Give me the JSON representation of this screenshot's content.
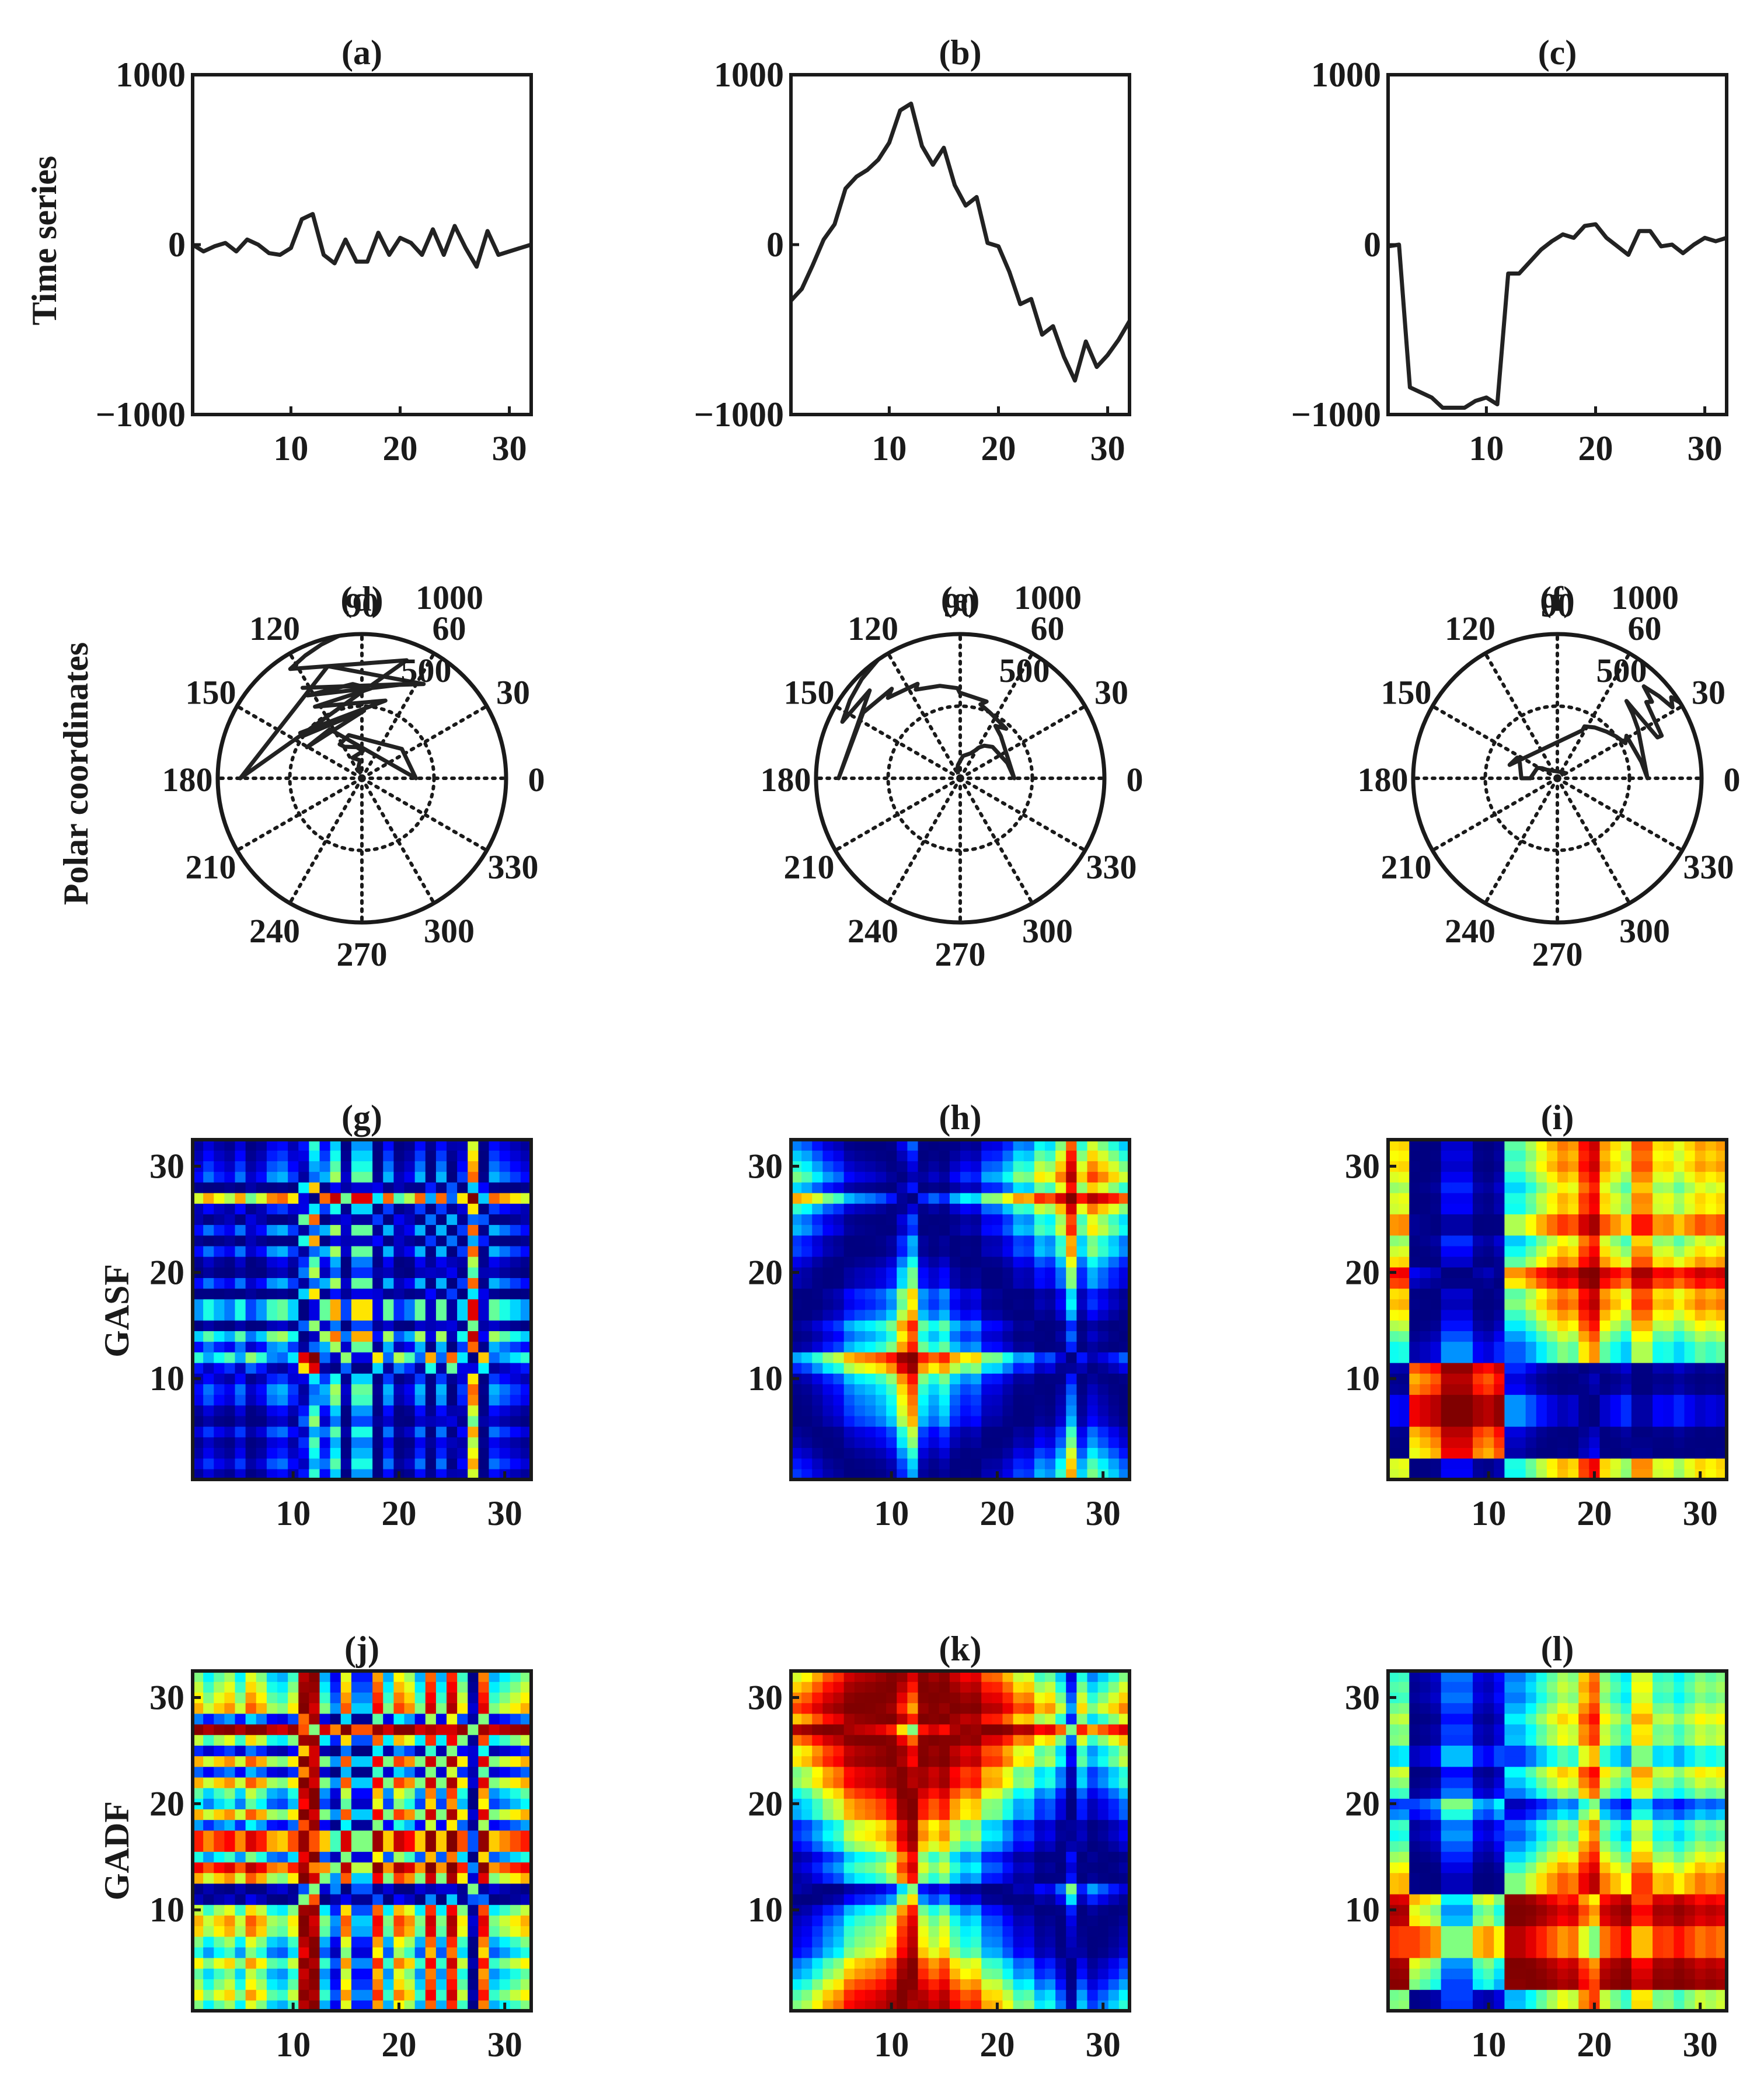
{
  "figure": {
    "row_labels": [
      "Time series",
      "Polar coordinates",
      "GASF",
      "GADF"
    ],
    "panel_titles": [
      "(a)",
      "(b)",
      "(c)",
      "(d)",
      "(e)",
      "(f)",
      "(g)",
      "(h)",
      "(i)",
      "(j)",
      "(k)",
      "(l)"
    ],
    "line_color": "#222222",
    "colormap": "jet"
  },
  "chart_data": [
    {
      "type": "line",
      "title": "(a)",
      "ylabel": "Time series",
      "xlabel": "",
      "xlim": [
        1,
        32
      ],
      "ylim": [
        -1000,
        1000
      ],
      "xticks": [
        10,
        20,
        30
      ],
      "yticks": [
        -1000,
        0,
        1000
      ],
      "ytick_labels": [
        "−1000",
        "0",
        "1000"
      ],
      "x": [
        1,
        2,
        3,
        4,
        5,
        6,
        7,
        8,
        9,
        10,
        11,
        12,
        13,
        14,
        15,
        16,
        17,
        18,
        19,
        20,
        21,
        22,
        23,
        24,
        25,
        26,
        27,
        28,
        29,
        30,
        31,
        32
      ],
      "values": [
        0,
        -40,
        -10,
        10,
        -40,
        30,
        0,
        -50,
        -60,
        -20,
        150,
        180,
        -60,
        -110,
        30,
        -100,
        -100,
        70,
        -60,
        40,
        10,
        -60,
        90,
        -60,
        110,
        -20,
        -130,
        80,
        -60,
        -40,
        -20,
        0
      ]
    },
    {
      "type": "line",
      "title": "(b)",
      "ylabel": "",
      "xlabel": "",
      "xlim": [
        1,
        32
      ],
      "ylim": [
        -1000,
        1000
      ],
      "xticks": [
        10,
        20,
        30
      ],
      "yticks": [
        -1000,
        0,
        1000
      ],
      "ytick_labels": [
        "−1000",
        "0",
        "1000"
      ],
      "x": [
        1,
        2,
        3,
        4,
        5,
        6,
        7,
        8,
        9,
        10,
        11,
        12,
        13,
        14,
        15,
        16,
        17,
        18,
        19,
        20,
        21,
        22,
        23,
        24,
        25,
        26,
        27,
        28,
        29,
        30,
        31,
        32
      ],
      "values": [
        -330,
        -260,
        -120,
        30,
        120,
        330,
        400,
        440,
        500,
        600,
        790,
        830,
        580,
        470,
        570,
        350,
        230,
        280,
        10,
        -10,
        -160,
        -350,
        -320,
        -530,
        -480,
        -660,
        -800,
        -570,
        -720,
        -650,
        -560,
        -450
      ]
    },
    {
      "type": "line",
      "title": "(c)",
      "ylabel": "",
      "xlabel": "",
      "xlim": [
        1,
        32
      ],
      "ylim": [
        -1000,
        1000
      ],
      "xticks": [
        10,
        20,
        30
      ],
      "yticks": [
        -1000,
        0,
        1000
      ],
      "ytick_labels": [
        "−1000",
        "0",
        "1000"
      ],
      "x": [
        1,
        2,
        3,
        4,
        5,
        6,
        7,
        8,
        9,
        10,
        11,
        12,
        13,
        14,
        15,
        16,
        17,
        18,
        19,
        20,
        21,
        22,
        23,
        24,
        25,
        26,
        27,
        28,
        29,
        30,
        31,
        32
      ],
      "values": [
        -10,
        0,
        -840,
        -870,
        -900,
        -960,
        -960,
        -960,
        -920,
        -900,
        -940,
        -170,
        -170,
        -100,
        -30,
        20,
        60,
        40,
        110,
        120,
        40,
        -10,
        -60,
        80,
        80,
        -10,
        0,
        -50,
        0,
        40,
        20,
        40
      ]
    },
    {
      "type": "polar",
      "title": "(d)",
      "ylabel": "Polar coordinates",
      "r_ticks": [
        500,
        1000
      ],
      "r_tick_labels": [
        "500",
        "1000"
      ],
      "theta_ticks": [
        0,
        30,
        60,
        90,
        120,
        150,
        180,
        210,
        240,
        270,
        300,
        330
      ],
      "source_series": 0
    },
    {
      "type": "polar",
      "title": "(e)",
      "ylabel": "",
      "r_ticks": [
        500,
        1000
      ],
      "r_tick_labels": [
        "500",
        "1000"
      ],
      "theta_ticks": [
        0,
        30,
        60,
        90,
        120,
        150,
        180,
        210,
        240,
        270,
        300,
        330
      ],
      "source_series": 1
    },
    {
      "type": "polar",
      "title": "(f)",
      "ylabel": "",
      "r_ticks": [
        500,
        1000
      ],
      "r_tick_labels": [
        "500",
        "1000"
      ],
      "theta_ticks": [
        0,
        30,
        60,
        90,
        120,
        150,
        180,
        210,
        240,
        270,
        300,
        330
      ],
      "source_series": 2
    },
    {
      "type": "heatmap",
      "title": "(g)",
      "ylabel": "GASF",
      "field": "GASF",
      "source_series": 0,
      "xticks": [
        10,
        20,
        30
      ],
      "yticks": [
        10,
        20,
        30
      ],
      "clim": [
        -1,
        1
      ]
    },
    {
      "type": "heatmap",
      "title": "(h)",
      "ylabel": "",
      "field": "GASF",
      "source_series": 1,
      "xticks": [
        10,
        20,
        30
      ],
      "yticks": [
        10,
        20,
        30
      ],
      "clim": [
        -1,
        1
      ]
    },
    {
      "type": "heatmap",
      "title": "(i)",
      "ylabel": "",
      "field": "GASF",
      "source_series": 2,
      "xticks": [
        10,
        20,
        30
      ],
      "yticks": [
        10,
        20,
        30
      ],
      "clim": [
        -1,
        1
      ]
    },
    {
      "type": "heatmap",
      "title": "(j)",
      "ylabel": "GADF",
      "field": "GADF",
      "source_series": 0,
      "xticks": [
        10,
        20,
        30
      ],
      "yticks": [
        10,
        20,
        30
      ],
      "clim": [
        -1,
        1
      ]
    },
    {
      "type": "heatmap",
      "title": "(k)",
      "ylabel": "",
      "field": "GADF",
      "source_series": 1,
      "xticks": [
        10,
        20,
        30
      ],
      "yticks": [
        10,
        20,
        30
      ],
      "clim": [
        -1,
        1
      ]
    },
    {
      "type": "heatmap",
      "title": "(l)",
      "ylabel": "",
      "field": "GADF",
      "source_series": 2,
      "xticks": [
        10,
        20,
        30
      ],
      "yticks": [
        10,
        20,
        30
      ],
      "clim": [
        -1,
        1
      ]
    }
  ]
}
